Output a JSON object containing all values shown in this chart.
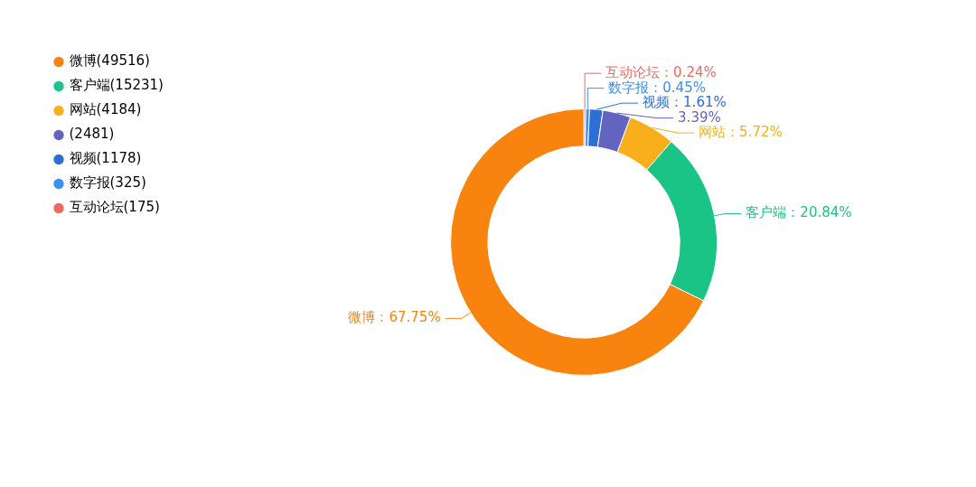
{
  "chart_data": {
    "type": "donut",
    "categories": [
      "微博(49516)",
      "客户端(15231)",
      "网站(4184)",
      "(2481)",
      "视频(1178)",
      "数字报(325)",
      "互动论坛(175)"
    ],
    "values": [
      67.75,
      20.84,
      5.72,
      3.39,
      1.61,
      0.45,
      0.24
    ],
    "colors": [
      "#f8840f",
      "#1ac386",
      "#f9ae1c",
      "#6363c2",
      "#2e6fd6",
      "#3a8ff0",
      "#ef675d"
    ],
    "value_labels": [
      "微博：67.75%",
      "客户端：20.84%",
      "网站：5.72%",
      "3.39%",
      "视频：1.61%",
      "数字报：0.45%",
      "互动论坛：0.24%"
    ],
    "legend": "top left"
  }
}
